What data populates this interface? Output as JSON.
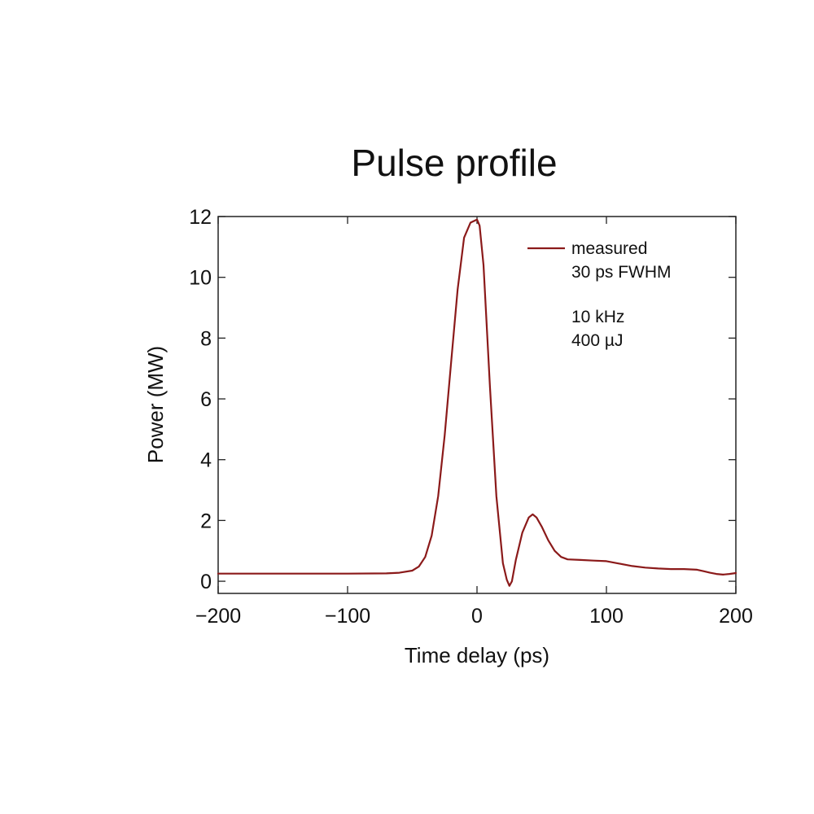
{
  "chart_data": {
    "type": "line",
    "title": "Pulse profile",
    "xlabel": "Time delay (ps)",
    "ylabel": "Power (MW)",
    "xlim": [
      -200,
      200
    ],
    "ylim": [
      -0.4,
      12
    ],
    "xticks": [
      -200,
      -100,
      0,
      100,
      200
    ],
    "yticks": [
      0,
      2,
      4,
      6,
      8,
      10,
      12
    ],
    "grid": false,
    "legend_position": "top-right",
    "series": [
      {
        "name": "measured",
        "color": "#8b1a1a",
        "x": [
          -200,
          -150,
          -100,
          -70,
          -60,
          -50,
          -45,
          -40,
          -35,
          -30,
          -25,
          -20,
          -15,
          -10,
          -5,
          0,
          2,
          5,
          10,
          15,
          20,
          23,
          25,
          27,
          30,
          35,
          40,
          43,
          46,
          50,
          55,
          60,
          65,
          70,
          80,
          90,
          100,
          110,
          120,
          130,
          140,
          150,
          160,
          170,
          175,
          180,
          185,
          190,
          195,
          200
        ],
        "y": [
          0.25,
          0.25,
          0.25,
          0.26,
          0.28,
          0.35,
          0.48,
          0.8,
          1.5,
          2.8,
          4.8,
          7.2,
          9.6,
          11.3,
          11.8,
          11.9,
          11.7,
          10.4,
          6.4,
          2.8,
          0.6,
          0.05,
          -0.15,
          0.0,
          0.7,
          1.6,
          2.1,
          2.2,
          2.1,
          1.8,
          1.35,
          1.0,
          0.8,
          0.72,
          0.7,
          0.68,
          0.66,
          0.58,
          0.5,
          0.45,
          0.42,
          0.4,
          0.4,
          0.38,
          0.33,
          0.28,
          0.24,
          0.22,
          0.24,
          0.27
        ]
      }
    ],
    "annotations": [
      "30 ps FWHM",
      "10 kHz",
      "400 µJ"
    ]
  }
}
